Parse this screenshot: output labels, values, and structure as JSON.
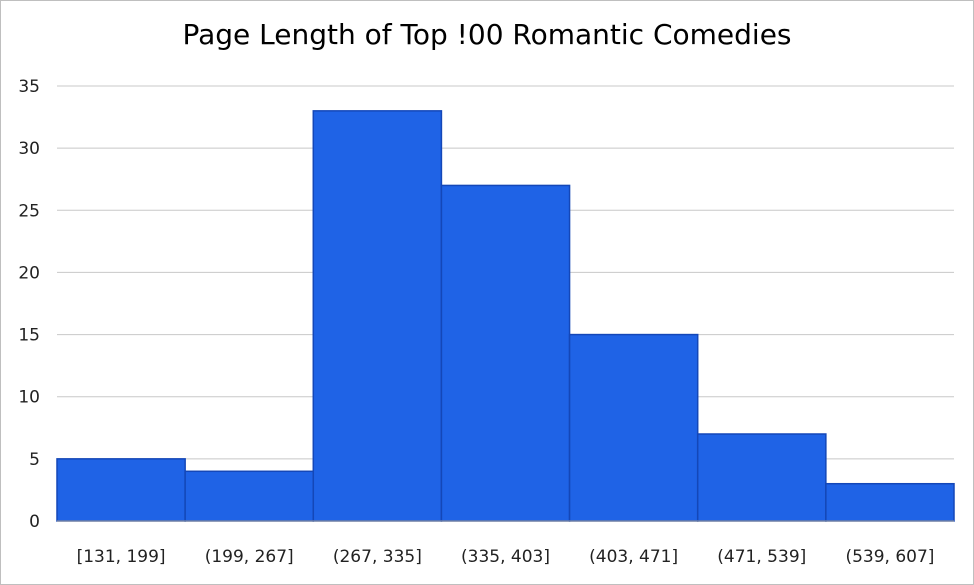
{
  "chart_data": {
    "type": "bar",
    "title": "Page Length of Top !00 Romantic Comedies",
    "xlabel": "",
    "ylabel": "",
    "categories": [
      "[131, 199]",
      "(199, 267]",
      "(267, 335]",
      "(335, 403]",
      "(403, 471]",
      "(471, 539]",
      "(539, 607]"
    ],
    "values": [
      5,
      4,
      33,
      27,
      15,
      7,
      3
    ],
    "ylim": [
      0,
      35
    ],
    "yticks": [
      0,
      5,
      10,
      15,
      20,
      25,
      30,
      35
    ],
    "grid": true,
    "legend": "none",
    "bar_color": "#1f63e6",
    "bar_edge_color": "#1447b8"
  }
}
